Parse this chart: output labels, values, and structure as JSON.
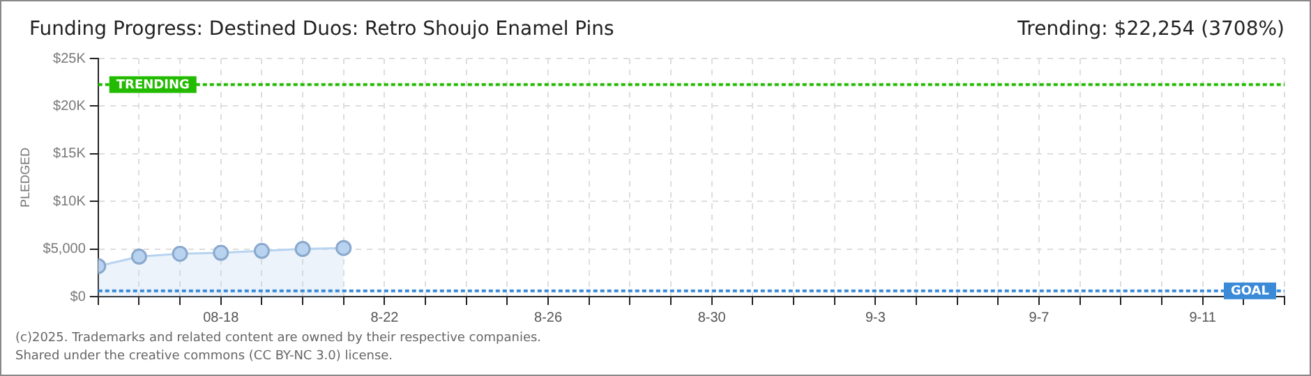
{
  "chart_data": {
    "type": "area",
    "title": "Funding Progress: Destined Duos: Retro Shoujo Enamel Pins",
    "subtitle": "Trending: $22,254 (3708%)",
    "ylabel": "PLEDGED",
    "x": [
      "--08-15",
      "--08-16",
      "--08-17",
      "--08-18",
      "--08-19",
      "--08-20",
      "--08-21"
    ],
    "series": [
      {
        "color": "#b8d3f0",
        "values": [
          3200,
          4200,
          4500,
          4600,
          4800,
          5000,
          5100
        ]
      }
    ],
    "xlim": [
      "--08-15",
      "--09-13"
    ],
    "xticks": [
      {
        "value": "--08-15",
        "label": null
      },
      {
        "value": "--08-16",
        "label": null
      },
      {
        "value": "--08-17",
        "label": null
      },
      {
        "value": "--08-18",
        "label": "08-18"
      },
      {
        "value": "--08-19",
        "label": null
      },
      {
        "value": "--08-20",
        "label": null
      },
      {
        "value": "--08-21",
        "label": null
      },
      {
        "value": "--08-22",
        "label": "8-22"
      },
      {
        "value": "--08-23",
        "label": null
      },
      {
        "value": "--08-24",
        "label": null
      },
      {
        "value": "--08-25",
        "label": null
      },
      {
        "value": "--08-26",
        "label": "8-26"
      },
      {
        "value": "--08-27",
        "label": null
      },
      {
        "value": "--08-28",
        "label": null
      },
      {
        "value": "--08-29",
        "label": null
      },
      {
        "value": "--08-30",
        "label": "8-30"
      },
      {
        "value": "--08-31",
        "label": null
      },
      {
        "value": "--09-01",
        "label": null
      },
      {
        "value": "--09-02",
        "label": null
      },
      {
        "value": "--09-03",
        "label": "9-3"
      },
      {
        "value": "--09-04",
        "label": null
      },
      {
        "value": "--09-05",
        "label": null
      },
      {
        "value": "--09-06",
        "label": null
      },
      {
        "value": "--09-07",
        "label": "9-7"
      },
      {
        "value": "--09-08",
        "label": null
      },
      {
        "value": "--09-09",
        "label": null
      },
      {
        "value": "--09-10",
        "label": null
      },
      {
        "value": "--09-11",
        "label": "9-11"
      },
      {
        "value": "--09-12",
        "label": null
      },
      {
        "value": "--09-13",
        "label": null
      }
    ],
    "ylim": [
      0,
      25000
    ],
    "yticks": [
      {
        "value": 0,
        "label": "$0"
      },
      {
        "value": 5000,
        "label": "$5,000"
      },
      {
        "value": 10000,
        "label": "$10K"
      },
      {
        "value": 15000,
        "label": "$15K"
      },
      {
        "value": 20000,
        "label": "$20K"
      },
      {
        "value": 25000,
        "label": "$25K"
      }
    ],
    "ref_lines": [
      {
        "axis": "y",
        "value": 22254,
        "label": "TRENDING",
        "color": "#22bb00",
        "line_style": "dotted"
      },
      {
        "axis": "y",
        "value": 600,
        "label": "GOAL",
        "color": "#3a8ad8",
        "line_style": "dotted"
      }
    ],
    "grid": true,
    "marker": "circle",
    "line_style": "solid",
    "annotations": [
      "(c)2025. Trademarks and related content are owned by their respective companies.",
      "Shared under the creative commons (CC BY-NC 3.0) license."
    ]
  }
}
